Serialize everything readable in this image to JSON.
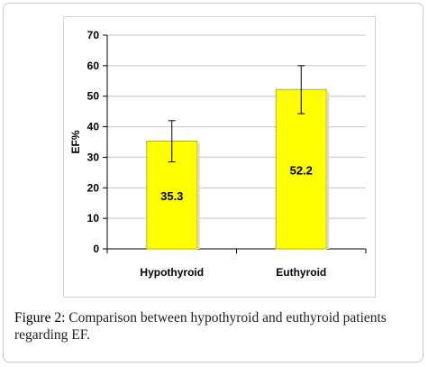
{
  "colors": {
    "bar": "#ffff00",
    "bar_edge": "#b5b500",
    "grid": "#c4c4c4",
    "axis": "#000000"
  },
  "chart_data": {
    "type": "bar",
    "title": "",
    "xlabel": "",
    "ylabel": "EF%",
    "ylim": [
      0,
      70
    ],
    "yticks": [
      "0",
      "10",
      "20",
      "30",
      "40",
      "50",
      "60",
      "70"
    ],
    "categories": [
      "Hypothyroid",
      "Euthyroid"
    ],
    "values": [
      35.3,
      52.2
    ],
    "value_labels": [
      "35.3",
      "52.2"
    ],
    "error_bars": [
      {
        "low": 28.5,
        "high": 42.0
      },
      {
        "low": 44.3,
        "high": 60.0
      }
    ],
    "grid": true,
    "legend": "none"
  },
  "caption": {
    "label": "Figure 2:",
    "text": " Comparison between hypothyroid and euthyroid patients regarding EF."
  }
}
